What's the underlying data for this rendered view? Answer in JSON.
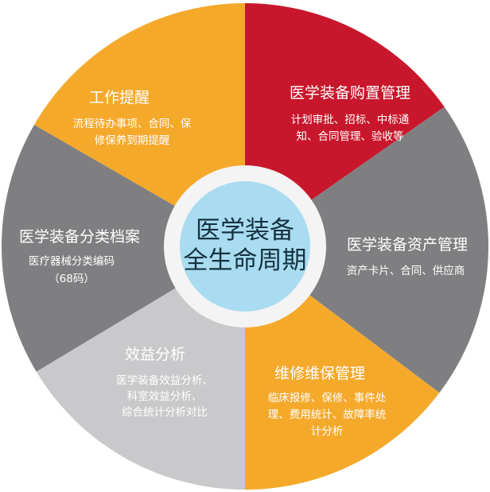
{
  "center": {
    "line1": "医学装备",
    "line2": "全生命周期"
  },
  "colors": {
    "orange": "#F5A92B",
    "red": "#C8172C",
    "dark_gray": "#7F7F82",
    "light_gray": "#C9C9CB",
    "center_blue": "#A9DCF1",
    "ring": "#F4F4F4"
  },
  "segments": [
    {
      "title": "工作提醒",
      "lines": [
        "流程待办事项、合同、保",
        "修保养到期提醒"
      ],
      "color": "orange"
    },
    {
      "title": "医学装备购置管理",
      "lines": [
        "计划审批、招标、中标通",
        "知、合同管理、验收等"
      ],
      "color": "red"
    },
    {
      "title": "医学装备资产管理",
      "lines": [
        "资产卡片、合同、供应商"
      ],
      "color": "dark_gray"
    },
    {
      "title": "维修维保管理",
      "lines": [
        "临床报修、保修、事件处",
        "理、费用统计、故障率统",
        "计分析"
      ],
      "color": "orange"
    },
    {
      "title": "效益分析",
      "lines": [
        "医学装备效益分析、",
        "科室效益分析、",
        "综合统计分析对比"
      ],
      "color": "light_gray"
    },
    {
      "title": "医学装备分类档案",
      "lines": [
        "医疗器械分类编码",
        "（68码）"
      ],
      "color": "dark_gray"
    }
  ]
}
